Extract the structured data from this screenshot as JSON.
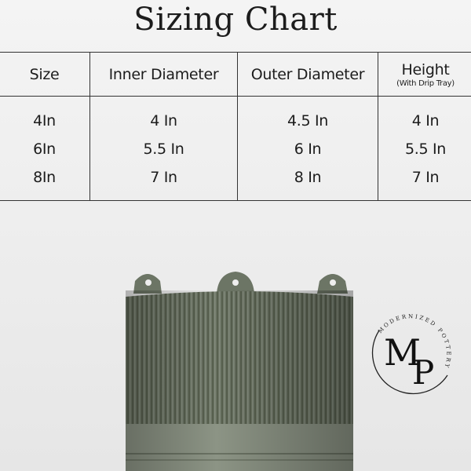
{
  "title": "Sizing Chart",
  "table": {
    "headers": [
      "Size",
      "Inner Diameter",
      "Outer Diameter",
      "Height"
    ],
    "height_note": "(With Drip Tray)",
    "rows": [
      [
        "4In",
        "4 In",
        "4.5 In",
        "4 In"
      ],
      [
        "6In",
        "5.5 In",
        "6 In",
        "5.5 In"
      ],
      [
        "8In",
        "7 In",
        "8 In",
        "7 In"
      ]
    ]
  },
  "logo": {
    "monogram": "MP",
    "ring_text": "MODERNIZED POTTERY"
  },
  "colors": {
    "pot": "#6c7565",
    "pot_band": "#8c9485",
    "text": "#1c1c1c"
  }
}
